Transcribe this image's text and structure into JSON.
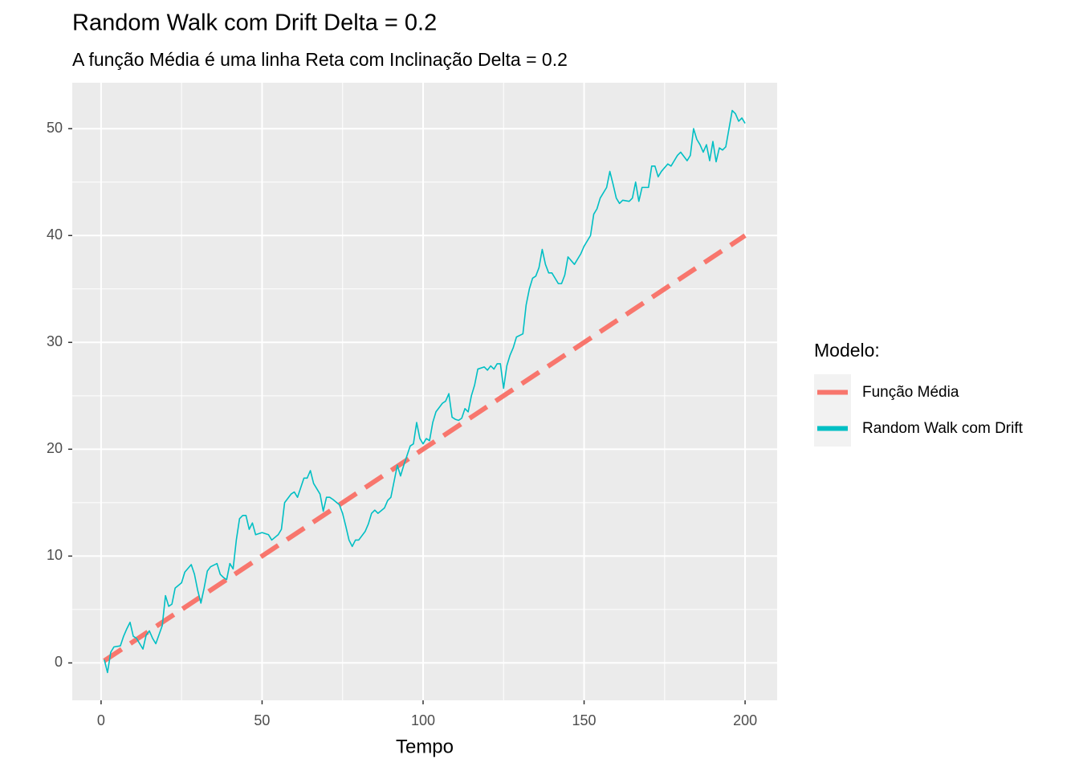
{
  "chart_data": {
    "type": "line",
    "title": "Random Walk com Drift Delta = 0.2",
    "subtitle": "A função Média é uma linha Reta com Inclinação Delta = 0.2",
    "x_label": "Tempo",
    "legend_title": "Modelo:",
    "legend": "right",
    "grid": true,
    "xlim": [
      -8.95,
      209.95
    ],
    "xticks": [
      0,
      50,
      100,
      150,
      200
    ],
    "ylim": [
      -3.5,
      54.3
    ],
    "yticks": [
      0,
      10,
      20,
      30,
      40,
      50
    ],
    "series": [
      {
        "name": "Função Média",
        "color": "#F8766D",
        "dashed": true,
        "x": [
          1,
          200
        ],
        "values": [
          0.2,
          40
        ]
      },
      {
        "name": "Random Walk com Drift",
        "color": "#00BFC4",
        "dashed": false,
        "x": [
          1,
          2,
          3,
          4,
          6,
          7,
          8,
          9,
          10,
          11,
          13,
          14,
          15,
          16,
          17,
          19,
          20,
          21,
          22,
          23,
          25,
          26,
          28,
          29,
          30,
          31,
          32,
          33,
          34,
          36,
          37,
          38,
          39,
          40,
          41,
          42,
          43,
          44,
          45,
          46,
          47,
          48,
          50,
          52,
          53,
          55,
          56,
          57,
          59,
          60,
          61,
          63,
          64,
          65,
          66,
          67,
          68,
          69,
          70,
          71,
          72,
          74,
          75,
          76,
          77,
          78,
          79,
          80,
          82,
          83,
          84,
          85,
          86,
          88,
          89,
          90,
          91,
          92,
          93,
          94,
          96,
          97,
          98,
          99,
          100,
          101,
          102,
          103,
          104,
          106,
          107,
          108,
          109,
          110,
          111,
          112,
          113,
          114,
          115,
          116,
          117,
          119,
          120,
          121,
          122,
          123,
          124,
          125,
          126,
          127,
          128,
          129,
          131,
          132,
          133,
          134,
          135,
          136,
          137,
          138,
          139,
          140,
          142,
          143,
          144,
          145,
          147,
          148,
          149,
          150,
          152,
          153,
          154,
          155,
          157,
          158,
          159,
          160,
          161,
          162,
          164,
          165,
          166,
          167,
          168,
          170,
          171,
          172,
          173,
          174,
          176,
          177,
          178,
          179,
          180,
          182,
          183,
          184,
          185,
          186,
          187,
          188,
          189,
          190,
          191,
          192,
          193,
          194,
          195,
          196,
          197,
          198,
          199,
          200
        ],
        "values": [
          0.3,
          -0.9,
          1.0,
          1.5,
          1.6,
          2.5,
          3.2,
          3.8,
          2.5,
          2.3,
          1.3,
          2.6,
          3.0,
          2.3,
          1.8,
          3.5,
          6.3,
          5.3,
          5.5,
          7.0,
          7.5,
          8.5,
          9.2,
          8.3,
          6.8,
          5.6,
          7.0,
          8.6,
          9.0,
          9.3,
          8.3,
          8.0,
          7.8,
          9.3,
          8.8,
          11.5,
          13.5,
          13.8,
          13.8,
          12.5,
          13.1,
          12.0,
          12.2,
          12.0,
          11.5,
          12.0,
          12.5,
          15.0,
          15.8,
          16.0,
          15.5,
          17.3,
          17.3,
          18.0,
          16.8,
          16.3,
          15.8,
          14.2,
          15.5,
          15.5,
          15.3,
          14.8,
          14.0,
          12.8,
          11.5,
          10.9,
          11.5,
          11.5,
          12.3,
          13.0,
          14.0,
          14.3,
          14.0,
          14.5,
          15.2,
          15.5,
          17.0,
          18.5,
          17.5,
          18.5,
          20.3,
          20.5,
          22.5,
          21.0,
          20.5,
          21.0,
          20.8,
          22.5,
          23.5,
          24.3,
          24.5,
          25.2,
          23.0,
          22.8,
          22.7,
          22.9,
          23.8,
          23.5,
          25.0,
          26.0,
          27.5,
          27.7,
          27.4,
          27.8,
          27.5,
          28.0,
          28.0,
          25.7,
          27.8,
          28.8,
          29.5,
          30.5,
          30.8,
          33.5,
          35.0,
          36.0,
          36.2,
          37.0,
          38.7,
          37.3,
          36.5,
          36.5,
          35.5,
          35.5,
          36.3,
          38.0,
          37.3,
          37.8,
          38.3,
          39.0,
          40.0,
          42.0,
          42.5,
          43.5,
          44.5,
          46.0,
          44.8,
          43.5,
          43.0,
          43.3,
          43.2,
          43.5,
          45.0,
          43.2,
          44.5,
          44.5,
          46.5,
          46.5,
          45.5,
          46.0,
          46.7,
          46.5,
          47.0,
          47.5,
          47.8,
          47.0,
          47.5,
          50.0,
          49.0,
          48.5,
          47.8,
          48.5,
          47.0,
          48.8,
          46.9,
          48.2,
          48.0,
          48.3,
          50.0,
          51.7,
          51.4,
          50.7,
          51.0,
          50.5
        ]
      }
    ]
  }
}
